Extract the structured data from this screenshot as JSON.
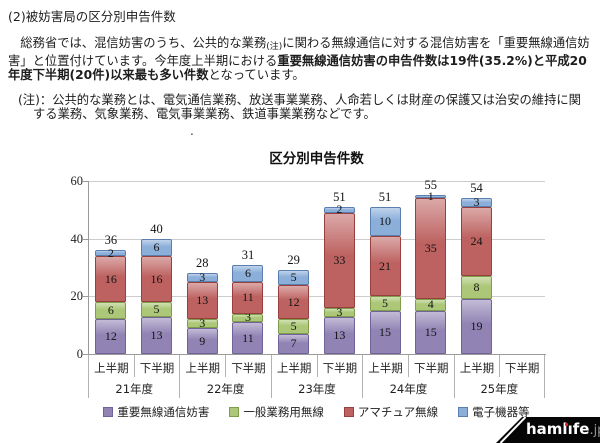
{
  "page": {
    "heading": "(2)被妨害局の区分別申告件数",
    "paragraph": {
      "pre": "　総務省では、混信妨害のうち、公共的な業務",
      "note_mark": "(注)",
      "mid": "に関わる無線通信に対する混信妨害を「重要無線通信妨害」と位置付けています。今年度上半期における",
      "bold": "重要無線通信妨害の申告件数は19件(35.2%)と平成20年度下半期(20件)以来最も多い件数",
      "post": "となっています。"
    },
    "note": {
      "label": "(注)：",
      "text": "公共的な業務とは、電気通信業務、放送事業業務、人命若しくは財産の保護又は治安の維持に関する業務、気象業務、電気事業業務、鉄道事業業務などです。"
    },
    "dot": "."
  },
  "chart_data": {
    "type": "bar",
    "stacked": true,
    "title": "区分別申告件数",
    "categories": [
      "上半期",
      "下半期",
      "上半期",
      "下半期",
      "上半期",
      "下半期",
      "上半期",
      "下半期",
      "上半期",
      "下半期"
    ],
    "year_groups": [
      "21年度",
      "22年度",
      "23年度",
      "24年度",
      "25年度"
    ],
    "series": [
      {
        "name": "重要無線通信妨害",
        "color": "#9184b4",
        "border": "#6f6399",
        "values": [
          12,
          13,
          9,
          11,
          7,
          13,
          15,
          15,
          19,
          null
        ]
      },
      {
        "name": "一般業務用無線",
        "color": "#abc777",
        "border": "#7f9c4a",
        "values": [
          6,
          5,
          3,
          3,
          5,
          3,
          5,
          4,
          8,
          null
        ]
      },
      {
        "name": "アマチュア無線",
        "color": "#bd6260",
        "border": "#96413e",
        "values": [
          16,
          16,
          13,
          11,
          12,
          33,
          21,
          35,
          24,
          null
        ]
      },
      {
        "name": "電子機器等",
        "color": "#8cafda",
        "border": "#5a7fae",
        "values": [
          2,
          6,
          3,
          6,
          5,
          2,
          10,
          1,
          3,
          null
        ]
      }
    ],
    "totals": [
      36,
      40,
      28,
      31,
      29,
      51,
      51,
      55,
      54,
      null
    ],
    "ylim": [
      0,
      60
    ],
    "yticks": [
      0,
      20,
      40,
      60
    ],
    "grid": true,
    "legend_position": "bottom"
  },
  "watermark": {
    "text_a": "haml",
    "text_i": "ı",
    "text_b": "fe",
    "suffix": ".jp"
  }
}
